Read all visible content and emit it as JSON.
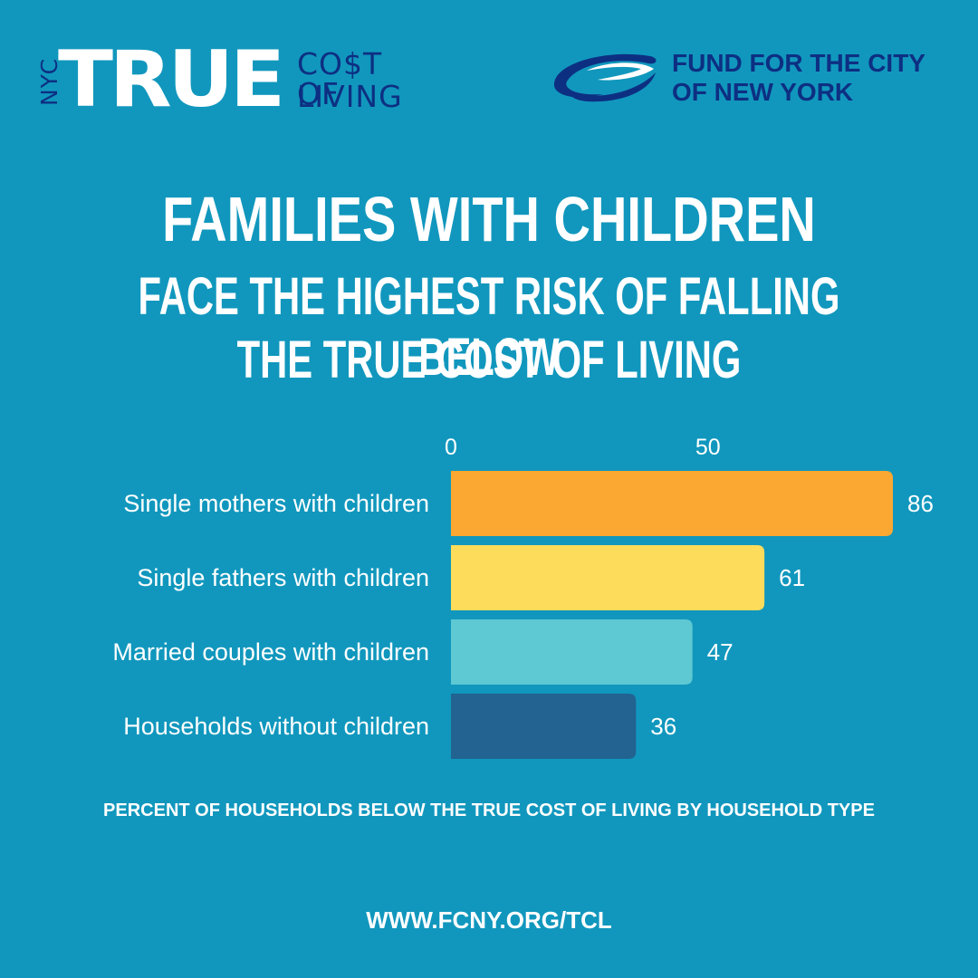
{
  "branding": {
    "tcl_logo": {
      "nyc": "NYC",
      "true_word": "TRUE",
      "cost_line1": "CO$T OF",
      "cost_line2": "LIVING"
    },
    "fund_logo": {
      "line1": "FUND FOR THE CITY",
      "line2": "OF NEW YORK"
    }
  },
  "headline": {
    "line1": "FAMILIES WITH CHILDREN",
    "line2": "FACE THE HIGHEST RISK OF FALLING BELOW",
    "line3": "THE TRUE COST OF LIVING"
  },
  "chart_data": {
    "type": "bar",
    "orientation": "horizontal",
    "categories": [
      "Single mothers with children",
      "Single fathers with children",
      "Married couples with children",
      "Households without children"
    ],
    "values": [
      86,
      61,
      47,
      36
    ],
    "colors": [
      "#fba832",
      "#fddc5c",
      "#5ec8d3",
      "#226392"
    ],
    "x_ticks": [
      0,
      50
    ],
    "xlim": [
      0,
      86
    ],
    "title": "",
    "xlabel": "PERCENT OF HOUSEHOLDS BELOW THE TRUE COST OF LIVING BY HOUSEHOLD TYPE",
    "ylabel": "",
    "grid": false,
    "data_labels": true
  },
  "footer": {
    "url": "WWW.FCNY.ORG/TCL"
  },
  "colors": {
    "background": "#1197bd",
    "navy": "#0d2f82",
    "text": "#ffffff"
  }
}
